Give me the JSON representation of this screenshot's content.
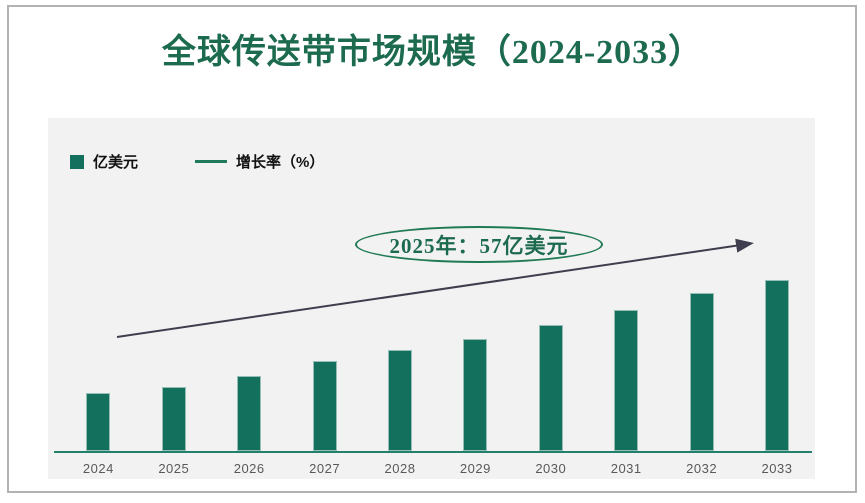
{
  "chart": {
    "title": "全球传送带市场规模（2024-2033）",
    "title_color": "#1d6b4f",
    "panel_bg": "#f2f2f2",
    "card_border_color": "#b2b2b2"
  },
  "legend": {
    "position": "top-left",
    "items": [
      {
        "label": "亿美元",
        "swatch": "square",
        "color": "#12705d"
      },
      {
        "label": "增长率（%）",
        "swatch": "line",
        "color": "#1f7a5e"
      }
    ]
  },
  "annotation": {
    "text": "2025年：57亿美元",
    "shape": "ellipse",
    "border_color": "#1f7a55",
    "text_color": "#1d6b4f"
  },
  "trend_arrow": {
    "description": "straight upward arrow rising left-to-right across the plot",
    "color": "#3e3e4e"
  },
  "chart_data": {
    "type": "bar",
    "title": "全球传送带市场规模（2024-2033）",
    "categories": [
      "2024",
      "2025",
      "2026",
      "2027",
      "2028",
      "2029",
      "2030",
      "2031",
      "2032",
      "2033"
    ],
    "series": [
      {
        "name": "亿美元",
        "type": "bar",
        "color": "#12705d",
        "values": [
          51,
          57,
          66,
          80,
          89,
          99,
          111,
          125,
          140,
          151
        ]
      },
      {
        "name": "增长率（%）",
        "type": "line",
        "color": "#3e3e4e",
        "note": "rendered only as an upward trend arrow, no data points or value axis shown"
      }
    ],
    "xlabel": "",
    "ylabel": "",
    "ylim": [
      0,
      160
    ],
    "value_axis_hidden": true,
    "grid": false,
    "legend_position": "top-left",
    "annotations": [
      {
        "text": "2025年：57亿美元",
        "target_category": "2025",
        "value": 57,
        "unit": "亿美元"
      }
    ]
  }
}
